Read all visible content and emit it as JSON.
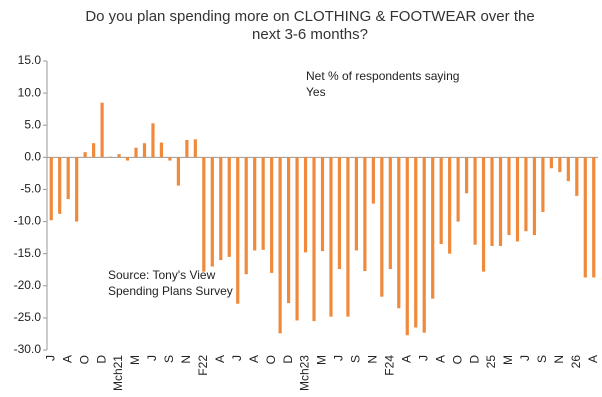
{
  "chart_data": {
    "type": "bar",
    "title": [
      "Do you plan spending more on CLOTHING & FOOTWEAR over the",
      "next 3-6 months?"
    ],
    "annotations": [
      [
        "Net % of respondents saying",
        "Yes"
      ],
      [
        "Source: Tony's View",
        "Spending Plans Survey"
      ]
    ],
    "categories": [
      "J",
      null,
      "A",
      null,
      "O",
      null,
      "D",
      null,
      "Mch21",
      null,
      "M",
      null,
      "J",
      null,
      "S",
      null,
      "N",
      null,
      "F22",
      null,
      "A",
      null,
      "J",
      null,
      "A",
      null,
      "O",
      null,
      "D",
      null,
      "Mch23",
      null,
      "M",
      null,
      "J",
      null,
      "S",
      null,
      "N",
      null,
      "F24",
      null,
      "A",
      null,
      "J",
      null,
      "A",
      null,
      "O",
      null,
      "D",
      null,
      "25",
      null,
      "M",
      null,
      "J",
      null,
      "S",
      null,
      "N",
      null,
      "26",
      null,
      "A"
    ],
    "values": [
      -9.8,
      -8.8,
      -6.5,
      -10.0,
      0.8,
      2.2,
      8.5,
      0.1,
      0.5,
      -0.5,
      1.5,
      2.2,
      5.3,
      2.3,
      -0.5,
      -4.4,
      2.7,
      2.8,
      -17.8,
      -17.0,
      -16.0,
      -15.5,
      -22.8,
      -18.2,
      -14.5,
      -14.4,
      -18.0,
      -27.4,
      -22.7,
      -25.4,
      -14.8,
      -25.5,
      -14.6,
      -24.8,
      -17.4,
      -24.8,
      -14.5,
      -17.7,
      -7.2,
      -21.7,
      -17.4,
      -23.5,
      -27.7,
      -26.5,
      -27.3,
      -22.0,
      -13.5,
      -15.0,
      -10.0,
      -5.6,
      -13.6,
      -17.8,
      -13.8,
      -13.8,
      -12.1,
      -13.1,
      -11.5,
      -12.1,
      -8.5,
      -1.7,
      -2.3,
      -3.7,
      -6.0,
      -18.7,
      -18.7
    ],
    "color": "#ef8a3c",
    "ylim": [
      -30,
      15
    ],
    "yticks": [
      {
        "value": -30,
        "label": "-30.0"
      },
      {
        "value": -25,
        "label": "-25.0"
      },
      {
        "value": -20,
        "label": "-20.0"
      },
      {
        "value": -15,
        "label": "-15.0"
      },
      {
        "value": -10,
        "label": "-10.0"
      },
      {
        "value": -5,
        "label": "-5.0"
      },
      {
        "value": 0,
        "label": "0.0"
      },
      {
        "value": 5,
        "label": "5.0"
      },
      {
        "value": 10,
        "label": "10.0"
      },
      {
        "value": 15,
        "label": "15.0"
      }
    ],
    "grid": false
  }
}
